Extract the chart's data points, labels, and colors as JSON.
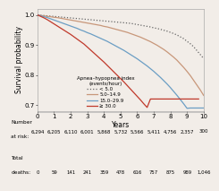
{
  "xlabel": "Years",
  "ylabel": "Survival probability",
  "xlim": [
    0,
    10
  ],
  "ylim": [
    0.68,
    1.02
  ],
  "yticks": [
    0.7,
    0.8,
    0.9,
    1.0
  ],
  "xticks": [
    0,
    1,
    2,
    3,
    4,
    5,
    6,
    7,
    8,
    9,
    10
  ],
  "legend_title": "Apnea–hypopnea index\n(events/hour)",
  "legend_labels": [
    "< 5.0",
    "5.0–14.9",
    "15.0–29.9",
    "≥ 30.0"
  ],
  "line_colors": [
    "#666666",
    "#c8977a",
    "#6b9ec4",
    "#c0392b"
  ],
  "line_styles": [
    "dotted",
    "solid",
    "solid",
    "solid"
  ],
  "curves": {
    "lt5": {
      "x": [
        0,
        0.2,
        0.4,
        0.6,
        0.8,
        1.0,
        1.2,
        1.4,
        1.6,
        1.8,
        2.0,
        2.2,
        2.4,
        2.6,
        2.8,
        3.0,
        3.2,
        3.4,
        3.6,
        3.8,
        4.0,
        4.2,
        4.4,
        4.6,
        4.8,
        5.0,
        5.2,
        5.4,
        5.6,
        5.8,
        6.0,
        6.2,
        6.4,
        6.6,
        6.8,
        7.0,
        7.2,
        7.4,
        7.6,
        7.8,
        8.0,
        8.2,
        8.4,
        8.6,
        8.8,
        9.0,
        9.2,
        9.4,
        9.6,
        9.8,
        10.0
      ],
      "y": [
        1.0,
        0.999,
        0.998,
        0.997,
        0.996,
        0.995,
        0.994,
        0.993,
        0.992,
        0.991,
        0.99,
        0.989,
        0.988,
        0.987,
        0.986,
        0.985,
        0.984,
        0.983,
        0.982,
        0.981,
        0.98,
        0.979,
        0.978,
        0.977,
        0.976,
        0.975,
        0.974,
        0.973,
        0.972,
        0.97,
        0.968,
        0.966,
        0.964,
        0.962,
        0.96,
        0.957,
        0.955,
        0.952,
        0.949,
        0.946,
        0.942,
        0.938,
        0.933,
        0.927,
        0.921,
        0.912,
        0.904,
        0.894,
        0.881,
        0.868,
        0.855
      ]
    },
    "5to15": {
      "x": [
        0,
        0.2,
        0.4,
        0.6,
        0.8,
        1.0,
        1.2,
        1.4,
        1.6,
        1.8,
        2.0,
        2.2,
        2.4,
        2.6,
        2.8,
        3.0,
        3.2,
        3.4,
        3.6,
        3.8,
        4.0,
        4.2,
        4.4,
        4.6,
        4.8,
        5.0,
        5.2,
        5.4,
        5.6,
        5.8,
        6.0,
        6.2,
        6.4,
        6.6,
        6.8,
        7.0,
        7.2,
        7.4,
        7.6,
        7.8,
        8.0,
        8.2,
        8.4,
        8.6,
        8.8,
        9.0,
        9.2,
        9.4,
        9.6,
        9.8,
        10.0
      ],
      "y": [
        1.0,
        0.998,
        0.997,
        0.995,
        0.994,
        0.992,
        0.991,
        0.989,
        0.987,
        0.985,
        0.983,
        0.981,
        0.979,
        0.977,
        0.975,
        0.973,
        0.971,
        0.969,
        0.967,
        0.965,
        0.962,
        0.96,
        0.957,
        0.954,
        0.951,
        0.948,
        0.945,
        0.942,
        0.938,
        0.934,
        0.93,
        0.926,
        0.921,
        0.916,
        0.911,
        0.905,
        0.899,
        0.892,
        0.885,
        0.877,
        0.868,
        0.859,
        0.849,
        0.837,
        0.825,
        0.812,
        0.798,
        0.782,
        0.766,
        0.75,
        0.732
      ]
    },
    "15to30": {
      "x": [
        0,
        0.2,
        0.4,
        0.6,
        0.8,
        1.0,
        1.2,
        1.4,
        1.6,
        1.8,
        2.0,
        2.2,
        2.4,
        2.6,
        2.8,
        3.0,
        3.2,
        3.4,
        3.6,
        3.8,
        4.0,
        4.2,
        4.4,
        4.6,
        4.8,
        5.0,
        5.2,
        5.4,
        5.6,
        5.8,
        6.0,
        6.2,
        6.4,
        6.6,
        6.8,
        7.0,
        7.2,
        7.4,
        7.6,
        7.8,
        8.0,
        8.2,
        8.4,
        8.6,
        8.8,
        9.0,
        9.2,
        9.4,
        9.6,
        9.8,
        10.0
      ],
      "y": [
        1.0,
        0.997,
        0.994,
        0.991,
        0.987,
        0.983,
        0.979,
        0.975,
        0.971,
        0.967,
        0.963,
        0.959,
        0.955,
        0.95,
        0.946,
        0.941,
        0.937,
        0.932,
        0.927,
        0.922,
        0.917,
        0.912,
        0.906,
        0.9,
        0.894,
        0.888,
        0.882,
        0.875,
        0.868,
        0.861,
        0.854,
        0.846,
        0.838,
        0.83,
        0.821,
        0.812,
        0.802,
        0.792,
        0.781,
        0.77,
        0.758,
        0.745,
        0.732,
        0.718,
        0.704,
        0.689,
        0.69,
        0.69,
        0.69,
        0.69,
        0.69
      ]
    },
    "ge30": {
      "x": [
        0,
        0.2,
        0.4,
        0.6,
        0.8,
        1.0,
        1.2,
        1.4,
        1.6,
        1.8,
        2.0,
        2.2,
        2.4,
        2.6,
        2.8,
        3.0,
        3.2,
        3.4,
        3.6,
        3.8,
        4.0,
        4.2,
        4.4,
        4.6,
        4.8,
        5.0,
        5.2,
        5.4,
        5.6,
        5.8,
        6.0,
        6.2,
        6.4,
        6.6,
        6.8,
        7.0,
        7.2,
        7.4,
        7.6,
        7.8,
        8.0,
        8.2,
        8.4,
        8.6,
        8.8,
        9.0,
        9.2,
        9.4,
        9.6,
        9.7
      ],
      "y": [
        1.0,
        0.995,
        0.99,
        0.984,
        0.977,
        0.97,
        0.963,
        0.956,
        0.949,
        0.942,
        0.935,
        0.927,
        0.919,
        0.911,
        0.903,
        0.893,
        0.883,
        0.873,
        0.863,
        0.853,
        0.843,
        0.832,
        0.821,
        0.81,
        0.799,
        0.788,
        0.777,
        0.765,
        0.753,
        0.741,
        0.729,
        0.717,
        0.704,
        0.692,
        0.72,
        0.72,
        0.72,
        0.72,
        0.72,
        0.72,
        0.72,
        0.72,
        0.72,
        0.72,
        0.72,
        0.72,
        0.72,
        0.72,
        0.72,
        0.72
      ]
    }
  },
  "table_atrisk_label1": "Number",
  "table_atrisk_label2": "at risk:",
  "table_deaths_label1": "Total",
  "table_deaths_label2": "deaths:",
  "table_years": [
    "0",
    "1",
    "2",
    "3",
    "4",
    "5",
    "6",
    "7",
    "8",
    "9",
    "10"
  ],
  "table_atrisk": [
    "6,294",
    "6,205",
    "6,110",
    "6,001",
    "5,868",
    "5,732",
    "5,566",
    "5,411",
    "4,756",
    "2,357",
    "300"
  ],
  "table_deaths": [
    "0",
    "59",
    "141",
    "241",
    "359",
    "478",
    "616",
    "757",
    "875",
    "989",
    "1,046"
  ],
  "bg_color": "#f2ede8",
  "font_size": 5.5,
  "tick_font_size": 5.0,
  "table_font_size": 4.2
}
